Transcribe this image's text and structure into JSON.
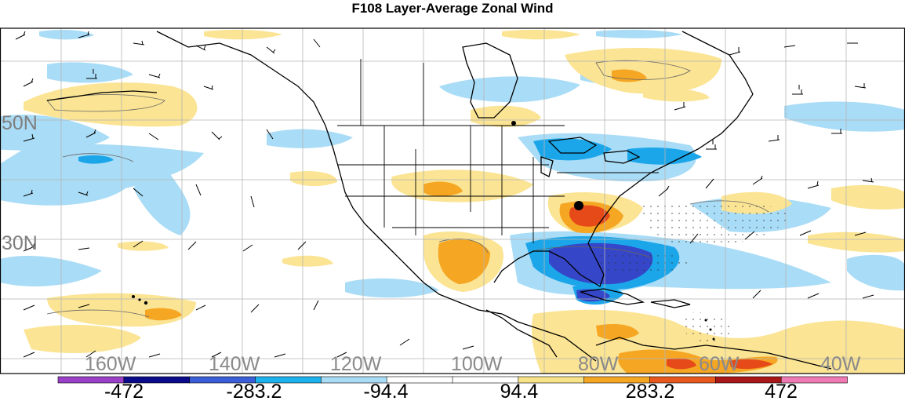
{
  "title": "F108 Layer-Average Zonal Wind",
  "latitude_labels": [
    "50N",
    "30N"
  ],
  "longitude_labels": [
    "160W",
    "140W",
    "120W",
    "100W",
    "80W",
    "60W",
    "40W"
  ],
  "colorbar": {
    "tick_labels": [
      "-472",
      "-283.2",
      "-94.4",
      "94.4",
      "283.2",
      "472"
    ],
    "colors": [
      "#9a3fc8",
      "#0a0a8a",
      "#3a5ed8",
      "#1cb2ee",
      "#a9dcf6",
      "#ffffff",
      "#ffffff",
      "#f8e38a",
      "#f5a623",
      "#e8581c",
      "#a81818",
      "#f07ab3"
    ]
  },
  "legend_colors": {
    "strong_negative": "#3546c8",
    "negative": "#1ca6ea",
    "weak_negative": "#a9dcf6",
    "weak_positive": "#fbe493",
    "positive": "#f5a623",
    "strong_positive": "#e64a19",
    "coastline": "#000000",
    "grid": "#b5b5b5"
  },
  "markers": [
    {
      "name": "station-dot",
      "lon": -79,
      "lat": 35.5
    }
  ]
}
